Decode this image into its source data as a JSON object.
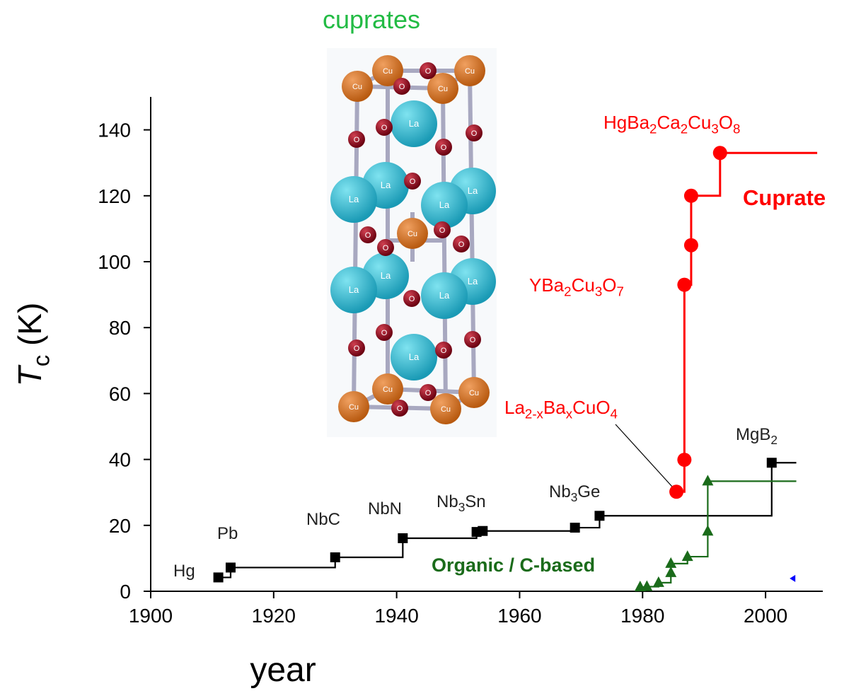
{
  "chart_data": {
    "type": "step",
    "xlabel": [
      "year"
    ],
    "ylabel": [
      "T",
      "c",
      " (K)"
    ],
    "xlim": [
      1900,
      2010
    ],
    "ylim": [
      0,
      150
    ],
    "xticks": [
      1900,
      1920,
      1940,
      1960,
      1980,
      2000
    ],
    "yticks": [
      0,
      20,
      40,
      60,
      80,
      100,
      120,
      140
    ],
    "series": [
      {
        "color": "#000000",
        "marker": "square",
        "x_end": 2005,
        "x": [
          1911,
          1913,
          1930,
          1941,
          1953,
          1954,
          1969,
          1973,
          2001
        ],
        "values": [
          4.2,
          7.2,
          10.3,
          16.1,
          18,
          18.3,
          19.3,
          22.9,
          39
        ]
      },
      {
        "name": "Cuprate",
        "color": "#ff0000",
        "marker": "circle",
        "x_end": 2008.4,
        "x": [
          1985.5,
          1986.8,
          1986.8,
          1987.9,
          1987.9,
          1992.6
        ],
        "values": [
          30.2,
          39.9,
          93,
          105,
          120,
          133
        ]
      },
      {
        "name": "Organic / C-based",
        "color": "#1a6b1a",
        "marker": "triangle",
        "x_end": 2005,
        "x": [
          1979.6,
          1980.7,
          1982.6,
          1984.6,
          1984.6,
          1987.3,
          1990.6,
          1990.6
        ],
        "values": [
          1.3,
          1.4,
          2.6,
          5.6,
          8.4,
          10.5,
          18.2,
          33.4
        ]
      },
      {
        "color": "#0000ff",
        "marker": "triangle-left",
        "x": [
          2004.5
        ],
        "values": [
          3.9
        ]
      }
    ],
    "annotations": [
      [
        "Hg"
      ],
      [
        "Pb"
      ],
      [
        "NbC"
      ],
      [
        "NbN"
      ],
      [
        "Nb",
        "3",
        "Sn"
      ],
      [
        "Nb",
        "3",
        "Ge"
      ],
      [
        "MgB",
        "2"
      ],
      [
        "La",
        "2-x",
        "Ba",
        "x",
        "CuO",
        "4"
      ],
      [
        "YBa",
        "2",
        "Cu",
        "3",
        "O",
        "7"
      ],
      [
        "HgBa",
        "2",
        "Ca",
        "2",
        "Cu",
        "3",
        "O",
        "8"
      ]
    ],
    "inset_title": "cuprates",
    "atom_labels": [
      "Cu",
      "La",
      "O"
    ]
  }
}
